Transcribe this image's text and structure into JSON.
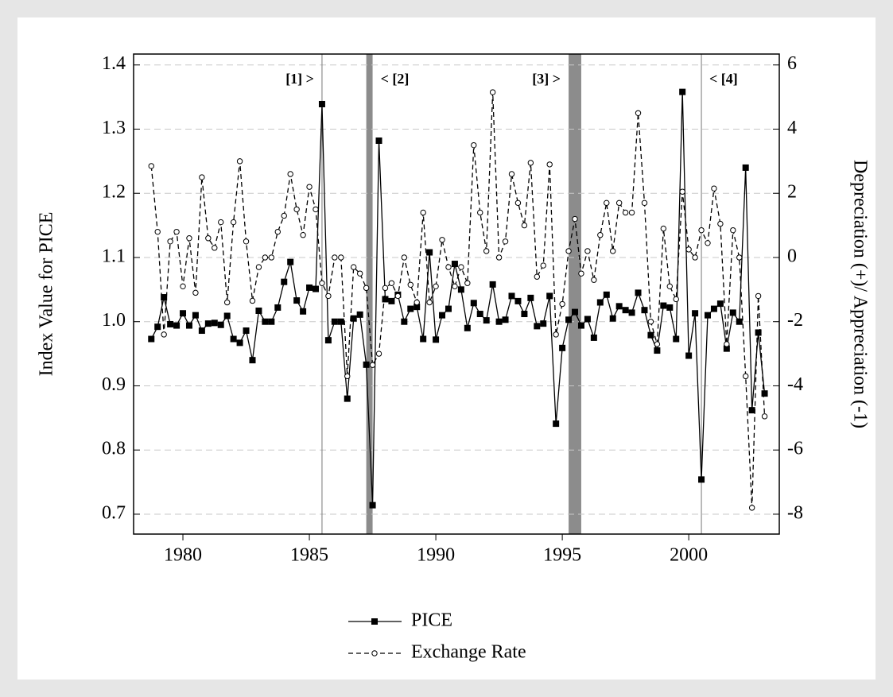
{
  "chart_data": {
    "type": "line",
    "y_label": "Index Value for PICE",
    "y2_label": "Depreciation (+)/ Appreciation (-1)",
    "x": [
      1978.75,
      1979,
      1979.25,
      1979.5,
      1979.75,
      1980,
      1980.25,
      1980.5,
      1980.75,
      1981,
      1981.25,
      1981.5,
      1981.75,
      1982,
      1982.25,
      1982.5,
      1982.75,
      1983,
      1983.25,
      1983.5,
      1983.75,
      1984,
      1984.25,
      1984.5,
      1984.75,
      1985,
      1985.25,
      1985.5,
      1985.75,
      1986,
      1986.25,
      1986.5,
      1986.75,
      1987,
      1987.25,
      1987.5,
      1987.75,
      1988,
      1988.25,
      1988.5,
      1988.75,
      1989,
      1989.25,
      1989.5,
      1989.75,
      1990,
      1990.25,
      1990.5,
      1990.75,
      1991,
      1991.25,
      1991.5,
      1991.75,
      1992,
      1992.25,
      1992.5,
      1992.75,
      1993,
      1993.25,
      1993.5,
      1993.75,
      1994,
      1994.25,
      1994.5,
      1994.75,
      1995,
      1995.25,
      1995.5,
      1995.75,
      1996,
      1996.25,
      1996.5,
      1996.75,
      1997,
      1997.25,
      1997.5,
      1997.75,
      1998,
      1998.25,
      1998.5,
      1998.75,
      1999,
      1999.25,
      1999.5,
      1999.75,
      2000,
      2000.25,
      2000.5,
      2000.75,
      2001,
      2001.25,
      2001.5,
      2001.75,
      2002,
      2002.25,
      2002.5,
      2002.75,
      2003
    ],
    "series": [
      {
        "name": "PICE",
        "color": "#000000",
        "dash": false,
        "marker": "square",
        "axis": "y",
        "values": [
          0.973,
          0.992,
          1.038,
          0.996,
          0.994,
          1.013,
          0.994,
          1.01,
          0.986,
          0.997,
          0.998,
          0.995,
          1.009,
          0.973,
          0.967,
          0.986,
          0.94,
          1.017,
          1.0,
          1.0,
          1.022,
          1.062,
          1.093,
          1.033,
          1.016,
          1.053,
          1.051,
          1.339,
          0.971,
          1.0,
          1.0,
          0.88,
          1.005,
          1.011,
          0.933,
          0.714,
          1.282,
          1.035,
          1.032,
          1.042,
          1.0,
          1.02,
          1.023,
          0.973,
          1.108,
          0.972,
          1.01,
          1.02,
          1.09,
          1.05,
          0.99,
          1.029,
          1.012,
          1.002,
          1.058,
          1.0,
          1.003,
          1.04,
          1.032,
          1.012,
          1.037,
          0.993,
          0.997,
          1.04,
          0.841,
          0.959,
          1.003,
          1.015,
          0.994,
          1.004,
          0.975,
          1.03,
          1.042,
          1.005,
          1.024,
          1.018,
          1.014,
          1.045,
          1.018,
          0.979,
          0.955,
          1.025,
          1.022,
          0.973,
          1.358,
          0.947,
          1.013,
          0.754,
          1.01,
          1.02,
          1.028,
          0.958,
          1.014,
          1.0,
          1.24,
          0.862,
          0.983,
          0.888
        ]
      },
      {
        "name": "Exchange Rate",
        "color": "#000000",
        "dash": true,
        "marker": "circle",
        "axis": "y2",
        "values": [
          2.85,
          0.8,
          -2.4,
          0.5,
          0.8,
          -0.9,
          0.6,
          -1.1,
          2.5,
          0.6,
          0.3,
          1.1,
          -1.4,
          1.1,
          3.0,
          0.5,
          -1.35,
          -0.3,
          0.0,
          0.0,
          0.8,
          1.3,
          2.6,
          1.5,
          0.7,
          2.2,
          1.5,
          -0.8,
          -1.2,
          0.0,
          0.0,
          -3.7,
          -0.3,
          -0.5,
          -0.95,
          -3.35,
          -3.0,
          -0.95,
          -0.8,
          -1.2,
          0.0,
          -0.85,
          -1.4,
          1.4,
          -1.4,
          -0.9,
          0.55,
          -0.3,
          -0.9,
          -0.3,
          -0.8,
          3.5,
          1.4,
          0.2,
          5.15,
          0.0,
          0.5,
          2.6,
          1.7,
          1.0,
          2.95,
          -0.6,
          -0.25,
          2.9,
          -2.4,
          -1.45,
          0.2,
          1.2,
          -0.5,
          0.2,
          -0.7,
          0.7,
          1.7,
          0.2,
          1.7,
          1.4,
          1.4,
          4.5,
          1.7,
          -2.0,
          -2.7,
          0.9,
          -0.9,
          -1.3,
          2.05,
          0.25,
          0.0,
          0.85,
          0.45,
          2.15,
          1.05,
          -2.7,
          0.85,
          0.0,
          -3.7,
          -7.8,
          -1.2,
          -4.95
        ]
      }
    ],
    "xlim": [
      1978.05,
      2003.58
    ],
    "xticks": [
      1980,
      1985,
      1990,
      1995,
      2000
    ],
    "ylim": [
      0.669,
      1.417
    ],
    "yticks": [
      0.7,
      0.8,
      0.9,
      {
        "value": 1,
        "label": "1.0"
      },
      1.1,
      1.2,
      1.3,
      1.4
    ],
    "y2lim": [
      -8.62,
      6.34
    ],
    "y2ticks": [
      -8,
      -6,
      -4,
      -2,
      0,
      2,
      4,
      6
    ],
    "grid": true,
    "shading": [
      {
        "from": 1987.25,
        "to": 1987.5
      },
      {
        "from": 1995.25,
        "to": 1995.75
      }
    ],
    "vlines": [
      1985.5,
      2000.5
    ],
    "annotations": [
      {
        "text": "[1] >",
        "x": 1985.5
      },
      {
        "text": "< [2]",
        "x": 1987.5
      },
      {
        "text": "[3] >",
        "x": 1995.25
      },
      {
        "text": "< [4]",
        "x": 2000.5
      }
    ],
    "legend": "bottom"
  }
}
